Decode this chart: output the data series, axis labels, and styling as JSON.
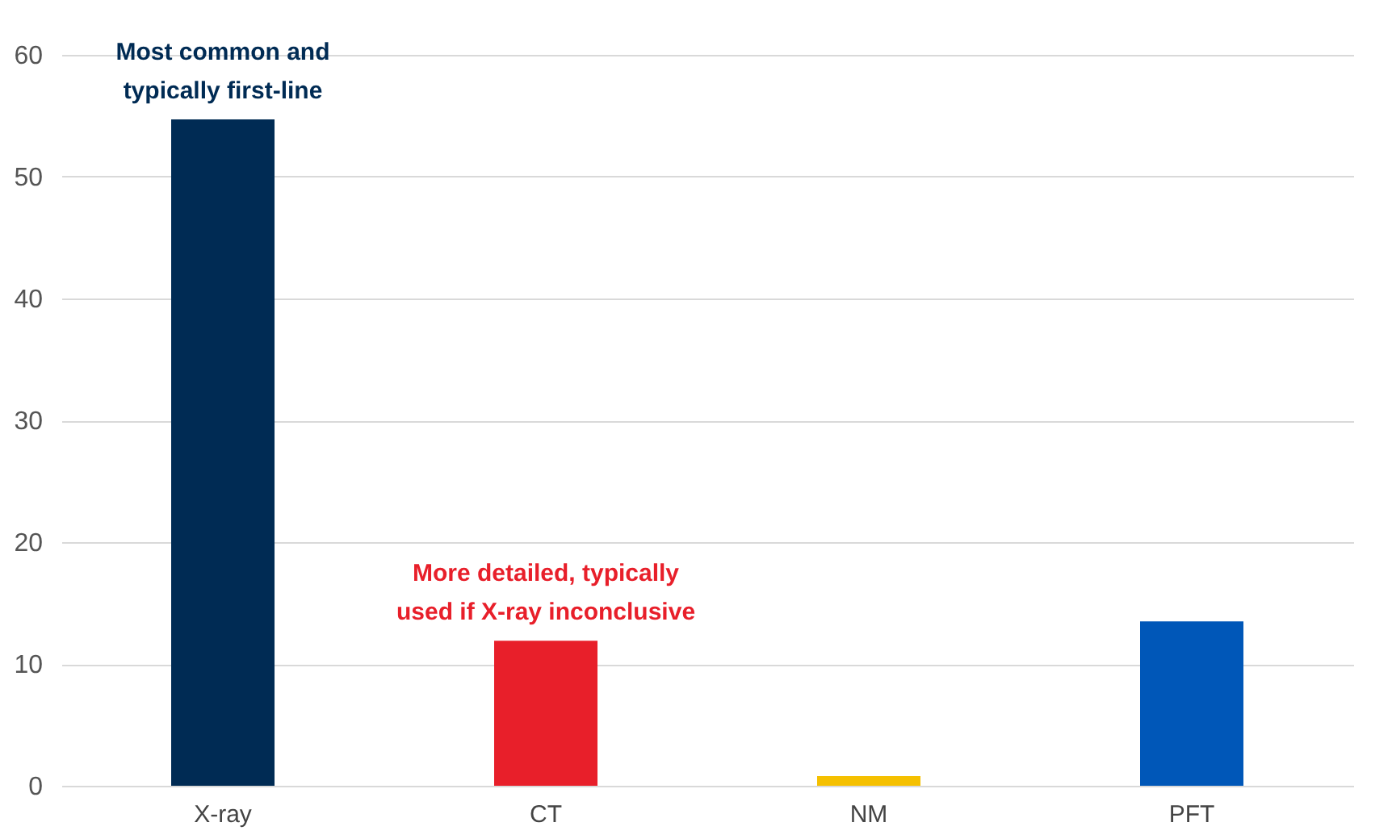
{
  "chart_data": {
    "type": "bar",
    "categories": [
      "X-ray",
      "CT",
      "NM",
      "PFT"
    ],
    "values": [
      54.7,
      11.9,
      0.8,
      13.5
    ],
    "colors": [
      "#002b54",
      "#e81f2a",
      "#f5c000",
      "#0057b8"
    ],
    "ylim": [
      0,
      60
    ],
    "yticks": [
      0,
      10,
      20,
      30,
      40,
      50,
      60
    ],
    "grid": "y",
    "annotations": [
      {
        "text": "Most common and typically first-line",
        "x": "X-ray",
        "y": 54.7
      },
      {
        "text": "More detailed, typically used if X-ray inconclusive",
        "x": "CT",
        "y": 11.9
      }
    ]
  }
}
